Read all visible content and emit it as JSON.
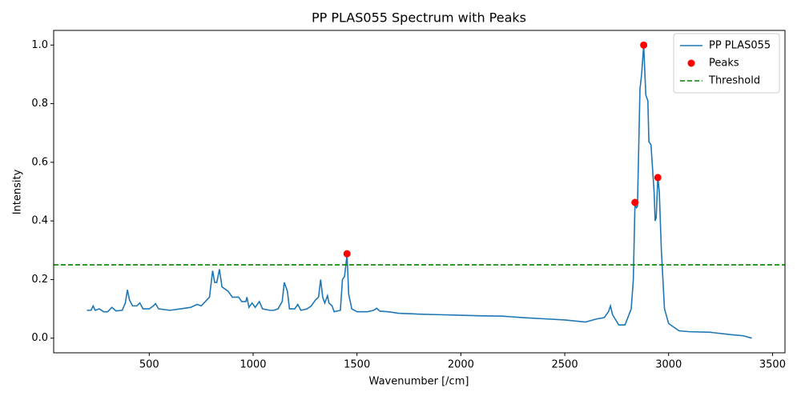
{
  "chart_data": {
    "type": "line",
    "title": "PP PLAS055 Spectrum with Peaks",
    "xlabel": "Wavenumber [/cm]",
    "ylabel": "Intensity",
    "xlim": [
      40,
      3560
    ],
    "ylim": [
      -0.05,
      1.05
    ],
    "xticks": [
      500,
      1000,
      1500,
      2000,
      2500,
      3000,
      3500
    ],
    "yticks": [
      {
        "value": 0,
        "label": "0.0"
      },
      0.2,
      0.4,
      0.6,
      0.8,
      {
        "value": 1,
        "label": "1.0"
      }
    ],
    "grid": false,
    "legend": "upper right",
    "series": [
      {
        "name": "PP PLAS055",
        "type": "line",
        "color": "#1f77b4",
        "x": [
          200,
          220,
          230,
          240,
          260,
          280,
          300,
          320,
          340,
          370,
          385,
          395,
          405,
          420,
          440,
          455,
          470,
          500,
          520,
          530,
          545,
          600,
          650,
          700,
          730,
          750,
          770,
          790,
          805,
          815,
          825,
          838,
          850,
          880,
          900,
          930,
          945,
          965,
          970,
          980,
          995,
          1010,
          1030,
          1045,
          1080,
          1100,
          1120,
          1140,
          1150,
          1165,
          1175,
          1200,
          1215,
          1230,
          1260,
          1280,
          1300,
          1315,
          1325,
          1335,
          1345,
          1358,
          1365,
          1380,
          1390,
          1420,
          1430,
          1440,
          1452,
          1460,
          1475,
          1500,
          1550,
          1580,
          1595,
          1610,
          1650,
          1700,
          1800,
          1900,
          2000,
          2100,
          2200,
          2300,
          2400,
          2500,
          2600,
          2650,
          2690,
          2710,
          2720,
          2730,
          2760,
          2790,
          2820,
          2830,
          2838,
          2845,
          2850,
          2862,
          2870,
          2880,
          2890,
          2900,
          2905,
          2915,
          2930,
          2935,
          2940,
          2948,
          2955,
          2965,
          2980,
          3000,
          3050,
          3100,
          3200,
          3300,
          3360,
          3400
        ],
        "values": [
          0.095,
          0.095,
          0.11,
          0.095,
          0.1,
          0.09,
          0.09,
          0.105,
          0.093,
          0.095,
          0.12,
          0.165,
          0.13,
          0.11,
          0.11,
          0.12,
          0.1,
          0.1,
          0.11,
          0.118,
          0.1,
          0.095,
          0.1,
          0.105,
          0.115,
          0.11,
          0.125,
          0.14,
          0.23,
          0.19,
          0.19,
          0.235,
          0.175,
          0.16,
          0.14,
          0.14,
          0.125,
          0.125,
          0.14,
          0.105,
          0.12,
          0.105,
          0.125,
          0.1,
          0.095,
          0.095,
          0.1,
          0.125,
          0.19,
          0.16,
          0.1,
          0.1,
          0.115,
          0.095,
          0.1,
          0.11,
          0.13,
          0.14,
          0.2,
          0.14,
          0.12,
          0.145,
          0.12,
          0.11,
          0.09,
          0.095,
          0.2,
          0.21,
          0.285,
          0.15,
          0.1,
          0.09,
          0.09,
          0.095,
          0.102,
          0.092,
          0.09,
          0.085,
          0.082,
          0.08,
          0.078,
          0.076,
          0.075,
          0.07,
          0.066,
          0.062,
          0.055,
          0.065,
          0.07,
          0.09,
          0.11,
          0.08,
          0.045,
          0.045,
          0.1,
          0.2,
          0.46,
          0.445,
          0.45,
          0.85,
          0.9,
          1.0,
          0.83,
          0.81,
          0.67,
          0.66,
          0.5,
          0.4,
          0.41,
          0.55,
          0.5,
          0.3,
          0.1,
          0.05,
          0.025,
          0.022,
          0.02,
          0.012,
          0.008,
          0.0
        ]
      },
      {
        "name": "Peaks",
        "type": "scatter",
        "color": "#ff0000",
        "x": [
          1452,
          2838,
          2880,
          2948
        ],
        "values": [
          0.288,
          0.463,
          1.0,
          0.548
        ]
      }
    ],
    "threshold": {
      "name": "Threshold",
      "value": 0.25,
      "color": "#008000"
    }
  }
}
